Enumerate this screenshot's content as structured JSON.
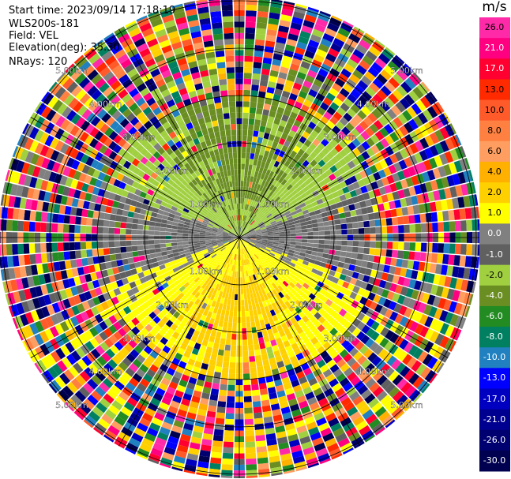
{
  "header": {
    "start_time": "Start time: 2023/09/14 17:18:19",
    "instrument": "WLS200s-181",
    "field": "Field: VEL",
    "elevation": "Elevation(deg): 35.30",
    "nrays": "NRays: 120"
  },
  "colorbar": {
    "unit": "m/s",
    "labels": [
      "26.0",
      "21.0",
      "17.0",
      "13.0",
      "10.0",
      "8.0",
      "6.0",
      "4.0",
      "2.0",
      "1.0",
      "0.0",
      "-1.0",
      "-2.0",
      "-4.0",
      "-6.0",
      "-8.0",
      "-10.0",
      "-13.0",
      "-17.0",
      "-21.0",
      "-26.0",
      "-30.0"
    ],
    "colors": [
      "#ff2aa8",
      "#ff0080",
      "#ff0030",
      "#ff2a00",
      "#ff5a2a",
      "#ff8040",
      "#ff9e60",
      "#ffb000",
      "#ffd000",
      "#ffff00",
      "#808080",
      "#606060",
      "#a0d040",
      "#6b8e23",
      "#228b22",
      "#008060",
      "#2080c0",
      "#0000ff",
      "#0000c0",
      "#000090",
      "#000070",
      "#000050"
    ]
  },
  "chart_data": {
    "type": "heatmap",
    "subtype": "polar PPI (range-azimuth)",
    "field": "VEL",
    "units": "m/s",
    "nrays": 120,
    "range_rings_km": [
      1.0,
      2.0,
      3.0,
      4.0,
      5.0
    ],
    "ring_labels": [
      "1.00km",
      "2.00km",
      "3.00km",
      "4.00km",
      "5.00km"
    ],
    "spokes_deg": [
      0,
      30,
      60,
      90,
      120,
      150,
      180,
      210,
      240,
      270,
      300,
      330
    ],
    "vmin": -30.0,
    "vmax": 26.0,
    "grid": true
  }
}
